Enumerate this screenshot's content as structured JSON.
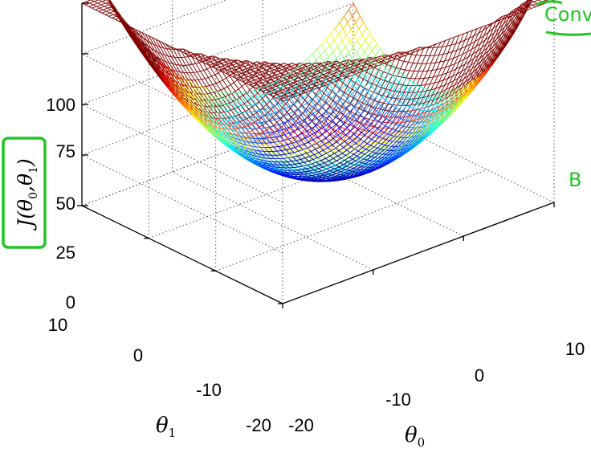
{
  "chart_data": {
    "type": "surface",
    "function": "J(theta0, theta1) = 0.25*theta0^2 + 0.25*theta1^2",
    "x": {
      "label": "θ0",
      "range": [
        -20,
        10
      ],
      "ticks": [
        "-20",
        "-10",
        "0",
        "10"
      ]
    },
    "y": {
      "label": "θ1",
      "range": [
        -20,
        10
      ],
      "ticks": [
        "-20",
        "-10",
        "0",
        "10"
      ]
    },
    "z": {
      "label": "J(θ0,θ1)",
      "range": [
        0,
        100
      ],
      "ticks": [
        "0",
        "25",
        "50",
        "75",
        "100"
      ]
    },
    "colormap": "jet",
    "grid": true
  },
  "annotations": {
    "ink_color": "#22c522",
    "fragment_1": "Conv",
    "fragment_2": "B"
  }
}
